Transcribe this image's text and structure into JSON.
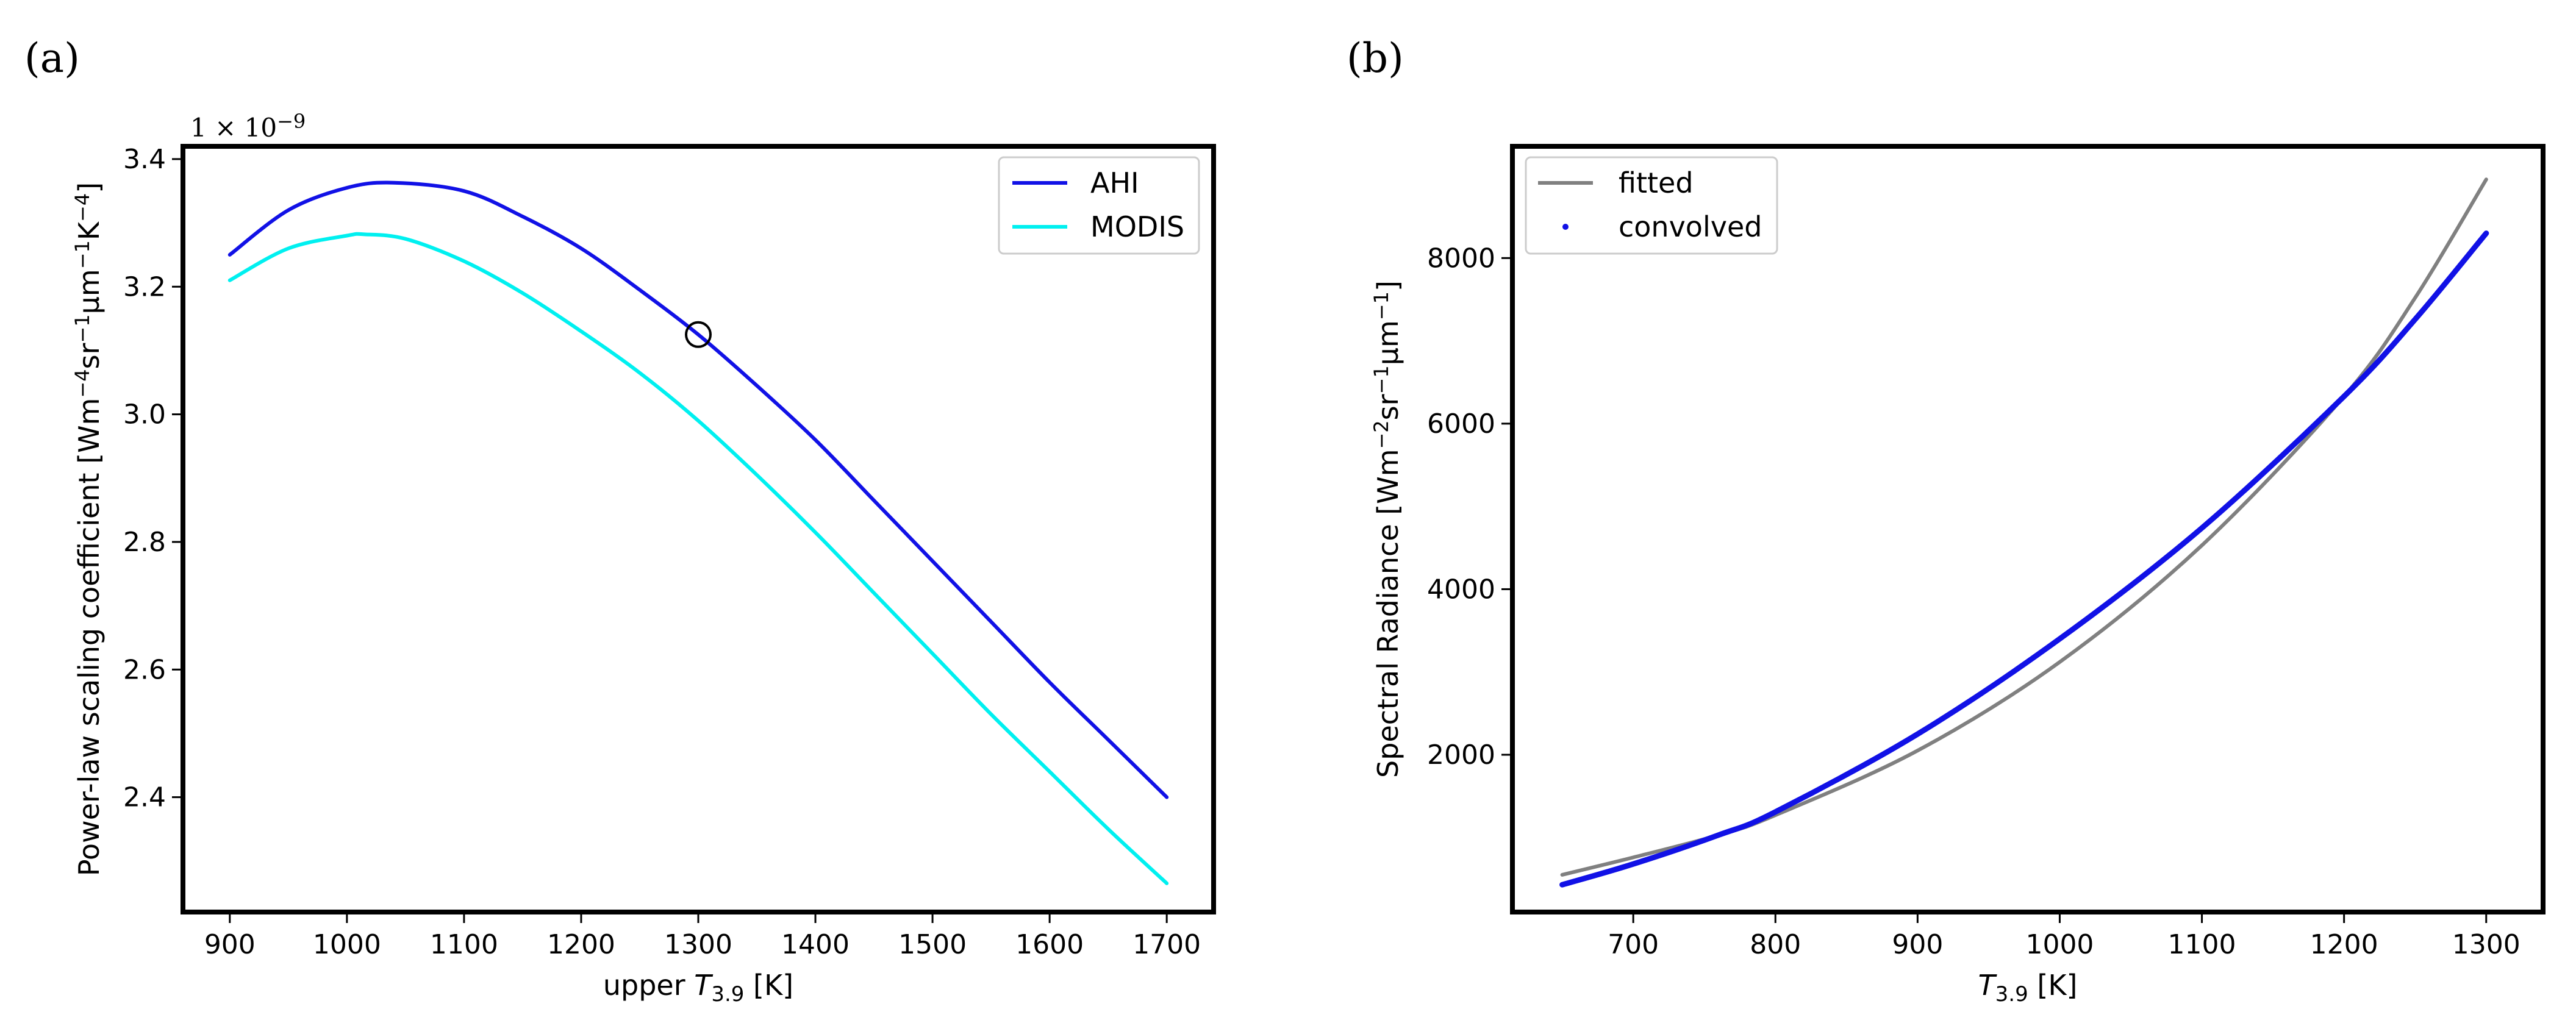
{
  "chart_data": [
    {
      "panel_label": "(a)",
      "type": "line",
      "xlabel_main": "upper ",
      "xlabel_var": "T",
      "xlabel_sub": "3.9",
      "xlabel_unit": " [K]",
      "ylabel_main": "Power-law scaling coefficient [Wm",
      "ylabel_sup1": "−4",
      "ylabel_mid1": "sr",
      "ylabel_sup2": "−1",
      "ylabel_mid2": "μm",
      "ylabel_sup3": "−1",
      "ylabel_mid3": "K",
      "ylabel_sup4": "−4",
      "ylabel_end": "]",
      "offset_text": "1 × 10",
      "offset_exp": "−9",
      "xlim": [
        860,
        1740
      ],
      "ylim": [
        2.22,
        3.42
      ],
      "xticks": [
        900,
        1000,
        1100,
        1200,
        1300,
        1400,
        1500,
        1600,
        1700
      ],
      "xtick_labels": [
        "900",
        "1000",
        "1100",
        "1200",
        "1300",
        "1400",
        "1500",
        "1600",
        "1700"
      ],
      "yticks": [
        2.4,
        2.6,
        2.8,
        3.0,
        3.2,
        3.4
      ],
      "ytick_labels": [
        "2.4",
        "2.6",
        "2.8",
        "3.0",
        "3.2",
        "3.4"
      ],
      "legend_position": "top-right",
      "series": [
        {
          "name": "AHI",
          "color": "#1111e6",
          "x": [
            900,
            950,
            1000,
            1040,
            1100,
            1150,
            1200,
            1250,
            1300,
            1350,
            1400,
            1450,
            1500,
            1550,
            1600,
            1650,
            1700
          ],
          "y": [
            3.25,
            3.32,
            3.355,
            3.363,
            3.35,
            3.31,
            3.26,
            3.195,
            3.125,
            3.045,
            2.96,
            2.865,
            2.77,
            2.675,
            2.58,
            2.49,
            2.4
          ]
        },
        {
          "name": "MODIS",
          "color": "#00f0f0",
          "x": [
            900,
            950,
            1000,
            1015,
            1050,
            1100,
            1150,
            1200,
            1250,
            1300,
            1350,
            1400,
            1450,
            1500,
            1550,
            1600,
            1650,
            1700
          ],
          "y": [
            3.21,
            3.26,
            3.28,
            3.282,
            3.275,
            3.24,
            3.19,
            3.13,
            3.065,
            2.99,
            2.905,
            2.815,
            2.72,
            2.625,
            2.53,
            2.44,
            2.35,
            2.265
          ]
        }
      ],
      "marker": {
        "x": 1300,
        "y": 3.125,
        "shape": "open-circle",
        "color": "#000000"
      }
    },
    {
      "panel_label": "(b)",
      "type": "line",
      "xlabel_var": "T",
      "xlabel_sub": "3.9",
      "xlabel_unit": " [K]",
      "ylabel_main": "Spectral Radiance [Wm",
      "ylabel_sup1": "−2",
      "ylabel_mid1": "sr",
      "ylabel_sup2": "−1",
      "ylabel_mid2": "μm",
      "ylabel_sup3": "−1",
      "ylabel_end": "]",
      "xlim": [
        615,
        1340
      ],
      "ylim": [
        100,
        9350
      ],
      "xticks": [
        700,
        800,
        900,
        1000,
        1100,
        1200,
        1300
      ],
      "xtick_labels": [
        "700",
        "800",
        "900",
        "1000",
        "1100",
        "1200",
        "1300"
      ],
      "yticks": [
        2000,
        4000,
        6000,
        8000
      ],
      "ytick_labels": [
        "2000",
        "4000",
        "6000",
        "8000"
      ],
      "legend_position": "top-left",
      "series": [
        {
          "name": "fitted",
          "color": "#808080",
          "x": [
            650,
            700,
            760,
            800,
            900,
            1000,
            1100,
            1200,
            1250,
            1300
          ],
          "y": [
            550,
            760,
            1030,
            1270,
            2050,
            3120,
            4530,
            6330,
            7520,
            8950
          ]
        },
        {
          "name": "convolved",
          "color": "#1111e6",
          "x": [
            650,
            700,
            760,
            800,
            900,
            1000,
            1100,
            1200,
            1250,
            1300
          ],
          "y": [
            430,
            680,
            1030,
            1310,
            2250,
            3400,
            4740,
            6330,
            7260,
            8300
          ]
        }
      ]
    }
  ]
}
